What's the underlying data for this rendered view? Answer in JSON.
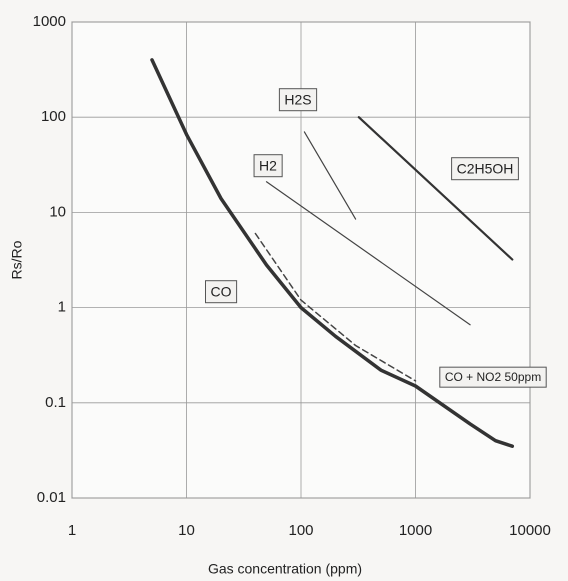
{
  "chart_data": {
    "type": "line",
    "x_label": "Gas concentration (ppm)",
    "y_label": "Rs/Ro",
    "log_x": true,
    "log_y": true,
    "grid": true,
    "xlim": [
      1,
      10000
    ],
    "ylim": [
      0.01,
      1000
    ],
    "xticks": [
      1,
      10,
      100,
      1000,
      10000
    ],
    "yticks": [
      0.01,
      0.1,
      1,
      10,
      100,
      1000
    ],
    "series": [
      {
        "name": "CO",
        "color": "#333333",
        "width": 3.5,
        "dashed": false,
        "x": [
          5,
          10,
          20,
          50,
          100,
          200,
          500,
          1000,
          3000,
          5000,
          7000
        ],
        "values": [
          400,
          66,
          14,
          2.8,
          1,
          0.5,
          0.22,
          0.15,
          0.06,
          0.04,
          0.035
        ]
      },
      {
        "name": "CO + NO2 50ppm",
        "color": "#444444",
        "width": 1.5,
        "dashed": true,
        "x": [
          40,
          100,
          300,
          1000
        ],
        "values": [
          6,
          1.2,
          0.4,
          0.17
        ]
      },
      {
        "name": "H2",
        "color": "#444444",
        "width": 1.2,
        "dashed": false,
        "x": [
          50,
          3000
        ],
        "values": [
          21,
          0.66
        ]
      },
      {
        "name": "H2S",
        "color": "#444444",
        "width": 1.2,
        "dashed": false,
        "x": [
          107,
          300
        ],
        "values": [
          70,
          8.5
        ]
      },
      {
        "name": "C2H5OH",
        "color": "#333333",
        "width": 2.2,
        "dashed": false,
        "x": [
          320,
          7000
        ],
        "values": [
          100,
          3.2
        ]
      }
    ]
  }
}
